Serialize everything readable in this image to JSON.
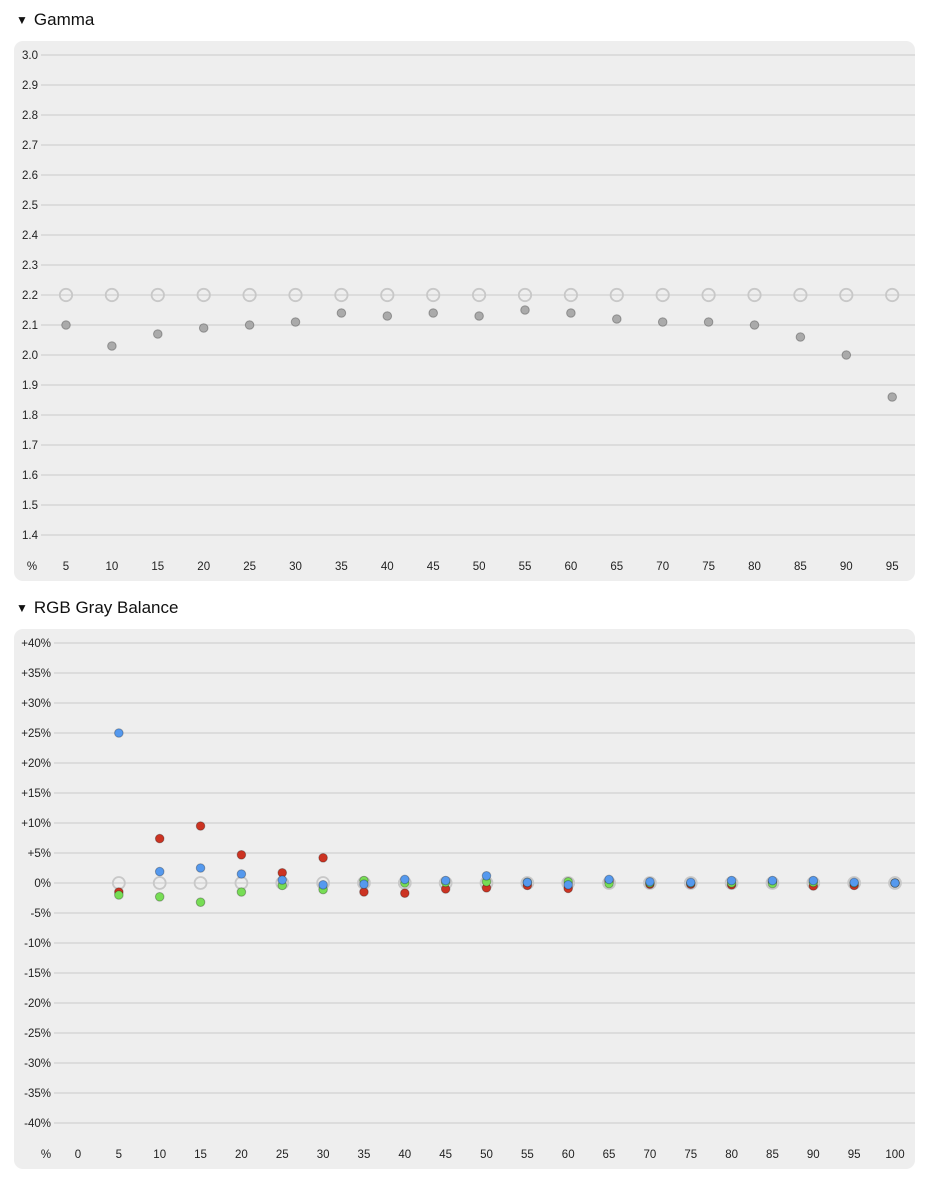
{
  "sections": [
    {
      "title": "Gamma",
      "toggle_icon": "triangle-down-icon"
    },
    {
      "title": "RGB Gray Balance",
      "toggle_icon": "triangle-down-icon"
    }
  ],
  "colors": {
    "panel_bg": "#eeeeee",
    "grid": "#d2d2d2",
    "target_marker": "#c8c8c8",
    "measured": "#aaaaaa",
    "red": "#cc3322",
    "green": "#77dd55",
    "blue": "#5599ee"
  },
  "chart_data": [
    {
      "type": "scatter",
      "title": "Gamma",
      "x_axis_unit": "%",
      "x": [
        5,
        10,
        15,
        20,
        25,
        30,
        35,
        40,
        45,
        50,
        55,
        60,
        65,
        70,
        75,
        80,
        85,
        90,
        95
      ],
      "y_ticks": [
        3.0,
        2.9,
        2.8,
        2.7,
        2.6,
        2.5,
        2.4,
        2.3,
        2.2,
        2.1,
        2.0,
        1.9,
        1.8,
        1.7,
        1.6,
        1.5,
        1.4
      ],
      "y_tick_labels": [
        "3.0",
        "2.9",
        "2.8",
        "2.7",
        "2.6",
        "2.5",
        "2.4",
        "2.3",
        "2.2",
        "2.1",
        "2.0",
        "1.9",
        "1.8",
        "1.7",
        "1.6",
        "1.5",
        "1.4"
      ],
      "ylim": [
        1.4,
        3.0
      ],
      "grid": true,
      "series": [
        {
          "role": "target",
          "values": [
            2.2,
            2.2,
            2.2,
            2.2,
            2.2,
            2.2,
            2.2,
            2.2,
            2.2,
            2.2,
            2.2,
            2.2,
            2.2,
            2.2,
            2.2,
            2.2,
            2.2,
            2.2,
            2.2
          ]
        },
        {
          "role": "measured",
          "values": [
            2.1,
            2.03,
            2.07,
            2.09,
            2.1,
            2.11,
            2.14,
            2.13,
            2.14,
            2.13,
            2.15,
            2.14,
            2.12,
            2.11,
            2.11,
            2.1,
            2.06,
            2.0,
            1.86
          ]
        }
      ]
    },
    {
      "type": "scatter",
      "title": "RGB Gray Balance",
      "x_axis_unit": "%",
      "x": [
        0,
        5,
        10,
        15,
        20,
        25,
        30,
        35,
        40,
        45,
        50,
        55,
        60,
        65,
        70,
        75,
        80,
        85,
        90,
        95,
        100
      ],
      "y_ticks": [
        40,
        35,
        30,
        25,
        20,
        15,
        10,
        5,
        0,
        -5,
        -10,
        -15,
        -20,
        -25,
        -30,
        -35,
        -40
      ],
      "y_tick_labels": [
        "+40%",
        "+35%",
        "+30%",
        "+25%",
        "+20%",
        "+15%",
        "+10%",
        "+5%",
        "0%",
        "-5%",
        "-10%",
        "-15%",
        "-20%",
        "-25%",
        "-30%",
        "-35%",
        "-40%"
      ],
      "ylim": [
        -40,
        40
      ],
      "grid": true,
      "series": [
        {
          "role": "target",
          "color_key": "target_marker",
          "x": [
            5,
            10,
            15,
            20,
            25,
            30,
            35,
            40,
            45,
            50,
            55,
            60,
            65,
            70,
            75,
            80,
            85,
            90,
            95,
            100
          ],
          "values": [
            0,
            0,
            0,
            0,
            0,
            0,
            0,
            0,
            0,
            0,
            0,
            0,
            0,
            0,
            0,
            0,
            0,
            0,
            0,
            0
          ]
        },
        {
          "role": "red",
          "color_key": "red",
          "x": [
            5,
            10,
            15,
            20,
            25,
            30,
            35,
            40,
            45,
            50,
            55,
            60,
            65,
            70,
            75,
            80,
            85,
            90,
            95,
            100
          ],
          "values": [
            -1.5,
            7.4,
            9.5,
            4.7,
            1.7,
            4.2,
            -1.5,
            -1.7,
            -1.0,
            -0.8,
            -0.4,
            -0.9,
            0.3,
            -0.2,
            -0.2,
            -0.3,
            0.2,
            -0.5,
            -0.4,
            0.0
          ]
        },
        {
          "role": "green",
          "color_key": "green",
          "x": [
            5,
            10,
            15,
            20,
            25,
            30,
            35,
            40,
            45,
            50,
            55,
            60,
            65,
            70,
            75,
            80,
            85,
            90,
            95,
            100
          ],
          "values": [
            -2.0,
            -2.3,
            -3.2,
            -1.5,
            -0.4,
            -1.1,
            0.4,
            0.0,
            0.1,
            0.2,
            0.1,
            0.2,
            -0.1,
            0.0,
            0.0,
            0.0,
            -0.1,
            0.1,
            0.0,
            0.0
          ]
        },
        {
          "role": "blue",
          "color_key": "blue",
          "x": [
            5,
            10,
            15,
            20,
            25,
            30,
            35,
            40,
            45,
            50,
            55,
            60,
            65,
            70,
            75,
            80,
            85,
            90,
            95,
            100
          ],
          "values": [
            25.0,
            1.9,
            2.5,
            1.5,
            0.5,
            -0.3,
            -0.2,
            0.6,
            0.4,
            1.2,
            0.1,
            -0.3,
            0.6,
            0.2,
            0.1,
            0.4,
            0.4,
            0.4,
            0.1,
            0.0
          ]
        }
      ]
    }
  ]
}
